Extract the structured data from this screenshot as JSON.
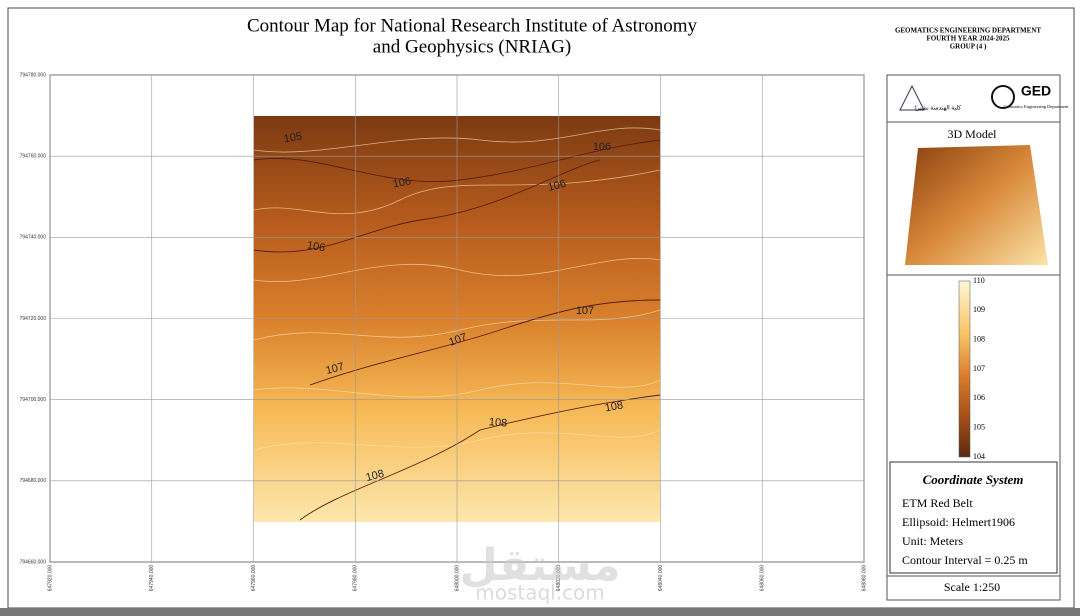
{
  "title_lines": [
    "Contour Map for National Research Institute of Astronomy",
    "and Geophysics (NRIAG)"
  ],
  "header_right": [
    "GEOMATICS ENGINEERING DEPARTMENT",
    "FOURTH YEAR 2024-2025",
    "GROUP (4 )"
  ],
  "map": {
    "y_labels": [
      "794780.000",
      "794760.000",
      "794740.000",
      "794720.000",
      "794700.000",
      "794680.000",
      "794660.000"
    ],
    "x_labels": [
      "647920.000",
      "647940.000",
      "647960.000",
      "647980.000",
      "648000.000",
      "648020.000",
      "648040.000",
      "648060.000",
      "648080.000"
    ],
    "contour_labels": [
      "105",
      "106",
      "106",
      "106",
      "106",
      "107",
      "107",
      "107",
      "108",
      "108",
      "108"
    ]
  },
  "logos": {
    "right": "GED",
    "right_sub": "Geomatics Engineering Department",
    "left": "كلية الهندسة بشبرا"
  },
  "model_title": "3D Model",
  "legend": [
    "110",
    "109",
    "108",
    "107",
    "106",
    "105",
    "104"
  ],
  "coordinate_system": {
    "title": "Coordinate System",
    "lines": [
      "ETM Red Belt",
      "Ellipsoid: Helmert1906",
      "Unit: Meters",
      "Contour Interval = 0.25 m"
    ]
  },
  "scale": "Scale 1:250",
  "watermark": [
    "مستقل",
    "mostaql.com"
  ]
}
